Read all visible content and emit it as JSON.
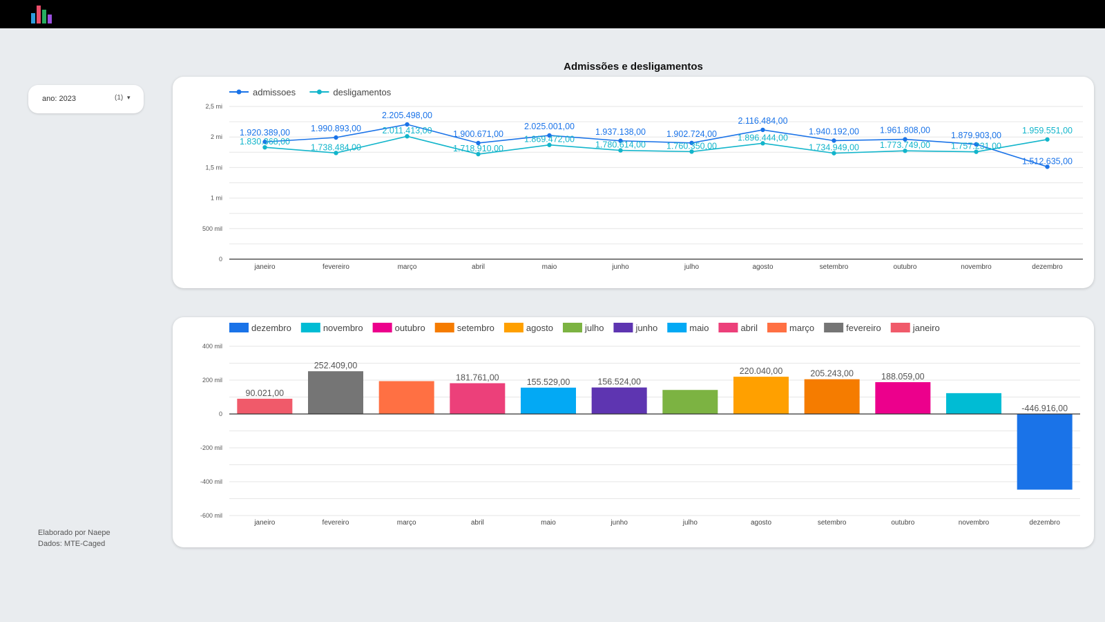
{
  "app": {
    "title": "Admissões e desligamentos",
    "logo_icon": "bar-chart-logo-icon",
    "logo_colors": [
      "#2d9cdb",
      "#eb4d6a",
      "#27ae60",
      "#9b51e0"
    ]
  },
  "filter": {
    "label": "ano: 2023",
    "count": "(1)",
    "icon": "caret-down-icon"
  },
  "footer": {
    "line1": "Elaborado por Naepe",
    "line2": "Dados: MTE-Caged"
  },
  "chart_data": [
    {
      "type": "line",
      "title": "Admissões e desligamentos",
      "x": [
        "janeiro",
        "fevereiro",
        "março",
        "abril",
        "maio",
        "junho",
        "julho",
        "agosto",
        "setembro",
        "outubro",
        "novembro",
        "dezembro"
      ],
      "ylim": [
        0,
        2500000
      ],
      "y_ticks": [
        {
          "value": 0,
          "label": "0"
        },
        {
          "value": 500000,
          "label": "500 mil"
        },
        {
          "value": 1000000,
          "label": "1 mi"
        },
        {
          "value": 1500000,
          "label": "1,5 mi"
        },
        {
          "value": 2000000,
          "label": "2 mi"
        },
        {
          "value": 2500000,
          "label": "2,5 mi"
        }
      ],
      "grid": true,
      "legend": "top-left",
      "series": [
        {
          "name": "admissoes",
          "color": "#1a73e8",
          "values": [
            1920389,
            1990893,
            2205498,
            1900671,
            2025001,
            1937138,
            1902724,
            2116484,
            1940192,
            1961808,
            1879903,
            1512635
          ],
          "labels": [
            "1.920.389,00",
            "1.990.893,00",
            "2.205.498,00",
            "1.900.671,00",
            "2.025.001,00",
            "1.937.138,00",
            "1.902.724,00",
            "2.116.484,00",
            "1.940.192,00",
            "1.961.808,00",
            "1.879.903,00",
            "1.512.635,00"
          ]
        },
        {
          "name": "desligamentos",
          "color": "#12b5cb",
          "values": [
            1830368,
            1738484,
            2011413,
            1718910,
            1869472,
            1780614,
            1760350,
            1896444,
            1734949,
            1773749,
            1757231,
            1959551
          ],
          "labels": [
            "1.830.368,00",
            "1.738.484,00",
            "2.011.413,00",
            "1.718.910,00",
            "1.869.472,00",
            "1.780.614,00",
            "1.760.350,00",
            "1.896.444,00",
            "1.734.949,00",
            "1.773.749,00",
            "1.757.231,00",
            "1.959.551,00"
          ]
        }
      ]
    },
    {
      "type": "bar",
      "categories": [
        "janeiro",
        "fevereiro",
        "março",
        "abril",
        "maio",
        "junho",
        "julho",
        "agosto",
        "setembro",
        "outubro",
        "novembro",
        "dezembro"
      ],
      "values": [
        90021,
        252409,
        194000,
        181761,
        155529,
        156524,
        142000,
        220040,
        205243,
        188059,
        123000,
        -446916
      ],
      "labels": [
        "90.021,00",
        "252.409,00",
        "",
        "181.761,00",
        "155.529,00",
        "156.524,00",
        "",
        "220.040,00",
        "205.243,00",
        "188.059,00",
        "",
        "-446.916,00"
      ],
      "colors": [
        "#f05a6a",
        "#757575",
        "#ff7043",
        "#ec407a",
        "#03a9f4",
        "#5e35b1",
        "#7cb342",
        "#ffa000",
        "#f57c00",
        "#ec008c",
        "#00bcd4",
        "#1a73e8"
      ],
      "ylim": [
        -600000,
        400000
      ],
      "y_ticks": [
        {
          "value": 400000,
          "label": "400 mil"
        },
        {
          "value": 200000,
          "label": "200 mil"
        },
        {
          "value": 0,
          "label": "0"
        },
        {
          "value": -200000,
          "label": "-200 mil"
        },
        {
          "value": -400000,
          "label": "-400 mil"
        },
        {
          "value": -600000,
          "label": "-600 mil"
        }
      ],
      "grid": true,
      "legend": "top-left",
      "legend_order": [
        "dezembro",
        "novembro",
        "outubro",
        "setembro",
        "agosto",
        "julho",
        "junho",
        "maio",
        "abril",
        "março",
        "fevereiro",
        "janeiro"
      ]
    }
  ]
}
